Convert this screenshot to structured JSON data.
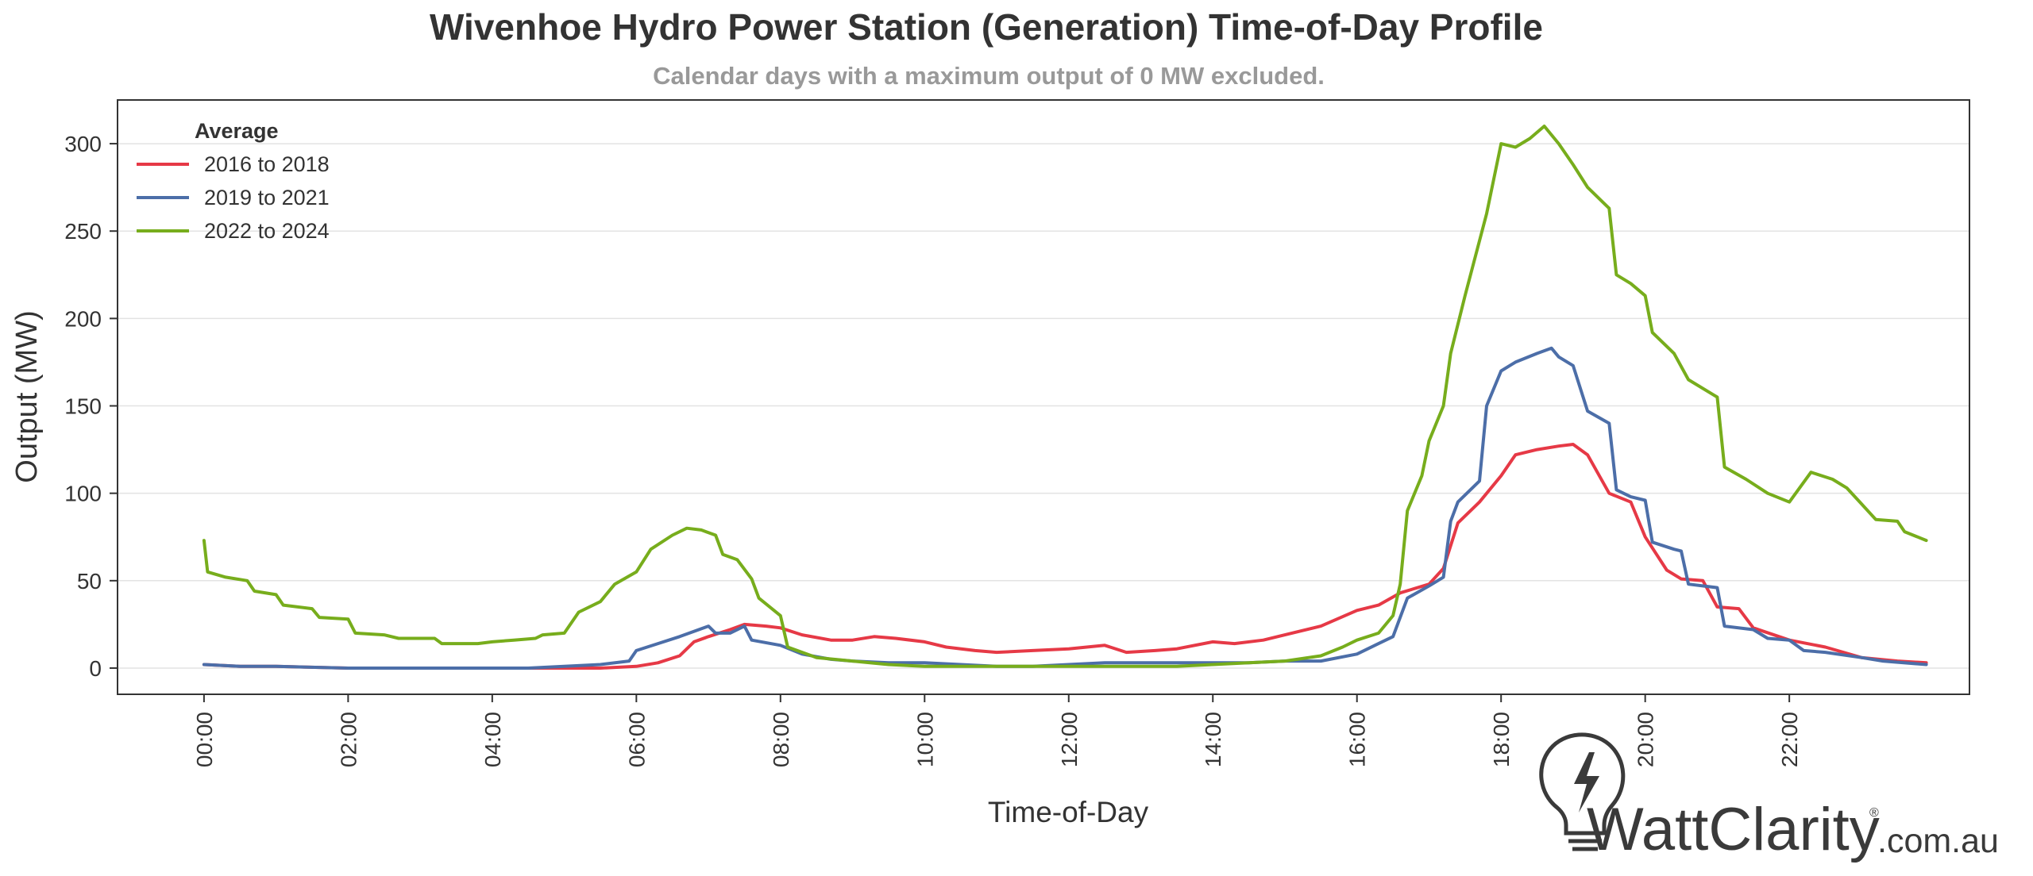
{
  "chart_data": {
    "type": "line",
    "title": "Wivenhoe Hydro Power Station (Generation) Time-of-Day Profile",
    "subtitle": "Calendar days with a maximum output of 0 MW excluded.",
    "xlabel": "Time-of-Day",
    "ylabel": "Output (MW)",
    "xlim": [
      -1.2,
      24.5
    ],
    "ylim": [
      -15,
      325
    ],
    "x_ticks": [
      "00:00",
      "02:00",
      "04:00",
      "06:00",
      "08:00",
      "10:00",
      "12:00",
      "14:00",
      "16:00",
      "18:00",
      "20:00",
      "22:00"
    ],
    "y_ticks": [
      0,
      50,
      100,
      150,
      200,
      250,
      300
    ],
    "grid": "horizontal",
    "legend": {
      "title": "Average",
      "position": "top-left"
    },
    "series": [
      {
        "name": "2016 to 2018",
        "color": "#e63946",
        "points": [
          [
            0,
            2
          ],
          [
            0.5,
            1
          ],
          [
            1,
            1
          ],
          [
            2,
            0
          ],
          [
            3,
            0
          ],
          [
            4,
            0
          ],
          [
            4.5,
            0
          ],
          [
            5,
            0
          ],
          [
            5.5,
            0
          ],
          [
            6,
            1
          ],
          [
            6.3,
            3
          ],
          [
            6.6,
            7
          ],
          [
            6.8,
            15
          ],
          [
            7,
            18
          ],
          [
            7.3,
            22
          ],
          [
            7.5,
            25
          ],
          [
            7.8,
            24
          ],
          [
            8,
            23
          ],
          [
            8.3,
            19
          ],
          [
            8.7,
            16
          ],
          [
            9,
            16
          ],
          [
            9.3,
            18
          ],
          [
            9.6,
            17
          ],
          [
            10,
            15
          ],
          [
            10.3,
            12
          ],
          [
            10.7,
            10
          ],
          [
            11,
            9
          ],
          [
            11.5,
            10
          ],
          [
            12,
            11
          ],
          [
            12.5,
            13
          ],
          [
            12.8,
            9
          ],
          [
            13.2,
            10
          ],
          [
            13.5,
            11
          ],
          [
            14,
            15
          ],
          [
            14.3,
            14
          ],
          [
            14.7,
            16
          ],
          [
            15,
            19
          ],
          [
            15.5,
            24
          ],
          [
            16,
            33
          ],
          [
            16.3,
            36
          ],
          [
            16.6,
            43
          ],
          [
            17,
            48
          ],
          [
            17.2,
            57
          ],
          [
            17.4,
            83
          ],
          [
            17.7,
            95
          ],
          [
            18,
            110
          ],
          [
            18.2,
            122
          ],
          [
            18.5,
            125
          ],
          [
            18.8,
            127
          ],
          [
            19,
            128
          ],
          [
            19.2,
            122
          ],
          [
            19.5,
            100
          ],
          [
            19.8,
            95
          ],
          [
            20,
            75
          ],
          [
            20.3,
            56
          ],
          [
            20.5,
            51
          ],
          [
            20.8,
            50
          ],
          [
            21,
            35
          ],
          [
            21.3,
            34
          ],
          [
            21.5,
            23
          ],
          [
            22,
            16
          ],
          [
            22.5,
            12
          ],
          [
            23,
            6
          ],
          [
            23.5,
            4
          ],
          [
            23.9,
            3
          ]
        ]
      },
      {
        "name": "2019 to 2021",
        "color": "#4c6ea8",
        "points": [
          [
            0,
            2
          ],
          [
            0.5,
            1
          ],
          [
            1,
            1
          ],
          [
            2,
            0
          ],
          [
            3,
            0
          ],
          [
            4,
            0
          ],
          [
            4.5,
            0
          ],
          [
            5,
            1
          ],
          [
            5.5,
            2
          ],
          [
            5.9,
            4
          ],
          [
            6,
            10
          ],
          [
            6.3,
            14
          ],
          [
            6.6,
            18
          ],
          [
            7,
            24
          ],
          [
            7.1,
            20
          ],
          [
            7.3,
            20
          ],
          [
            7.5,
            24
          ],
          [
            7.6,
            16
          ],
          [
            8,
            13
          ],
          [
            8.3,
            8
          ],
          [
            8.7,
            5
          ],
          [
            9,
            4
          ],
          [
            9.5,
            3
          ],
          [
            10,
            3
          ],
          [
            10.5,
            2
          ],
          [
            11,
            1
          ],
          [
            11.5,
            1
          ],
          [
            12,
            2
          ],
          [
            12.5,
            3
          ],
          [
            13,
            3
          ],
          [
            13.5,
            3
          ],
          [
            14,
            3
          ],
          [
            14.5,
            3
          ],
          [
            15,
            4
          ],
          [
            15.5,
            4
          ],
          [
            16,
            8
          ],
          [
            16.3,
            14
          ],
          [
            16.5,
            18
          ],
          [
            16.7,
            40
          ],
          [
            17,
            47
          ],
          [
            17.2,
            52
          ],
          [
            17.3,
            84
          ],
          [
            17.4,
            95
          ],
          [
            17.7,
            107
          ],
          [
            17.8,
            150
          ],
          [
            18,
            170
          ],
          [
            18.2,
            175
          ],
          [
            18.5,
            180
          ],
          [
            18.7,
            183
          ],
          [
            18.8,
            178
          ],
          [
            19,
            173
          ],
          [
            19.2,
            147
          ],
          [
            19.5,
            140
          ],
          [
            19.6,
            102
          ],
          [
            19.8,
            98
          ],
          [
            20,
            96
          ],
          [
            20.1,
            72
          ],
          [
            20.4,
            68
          ],
          [
            20.5,
            67
          ],
          [
            20.6,
            48
          ],
          [
            21,
            46
          ],
          [
            21.1,
            24
          ],
          [
            21.5,
            22
          ],
          [
            21.7,
            17
          ],
          [
            22,
            16
          ],
          [
            22.2,
            10
          ],
          [
            22.5,
            9
          ],
          [
            23,
            6
          ],
          [
            23.3,
            4
          ],
          [
            23.9,
            2
          ]
        ]
      },
      {
        "name": "2022 to 2024",
        "color": "#77ad1c",
        "points": [
          [
            0,
            73
          ],
          [
            0.05,
            55
          ],
          [
            0.3,
            52
          ],
          [
            0.6,
            50
          ],
          [
            0.7,
            44
          ],
          [
            1,
            42
          ],
          [
            1.1,
            36
          ],
          [
            1.5,
            34
          ],
          [
            1.6,
            29
          ],
          [
            2,
            28
          ],
          [
            2.1,
            20
          ],
          [
            2.5,
            19
          ],
          [
            2.7,
            17
          ],
          [
            3.2,
            17
          ],
          [
            3.3,
            14
          ],
          [
            3.8,
            14
          ],
          [
            4,
            15
          ],
          [
            4.3,
            16
          ],
          [
            4.6,
            17
          ],
          [
            4.7,
            19
          ],
          [
            5,
            20
          ],
          [
            5.2,
            32
          ],
          [
            5.5,
            38
          ],
          [
            5.7,
            48
          ],
          [
            6,
            55
          ],
          [
            6.2,
            68
          ],
          [
            6.5,
            76
          ],
          [
            6.7,
            80
          ],
          [
            6.9,
            79
          ],
          [
            7.1,
            76
          ],
          [
            7.2,
            65
          ],
          [
            7.4,
            62
          ],
          [
            7.6,
            51
          ],
          [
            7.7,
            40
          ],
          [
            8,
            30
          ],
          [
            8.1,
            12
          ],
          [
            8.5,
            6
          ],
          [
            9,
            4
          ],
          [
            9.5,
            2
          ],
          [
            10,
            1
          ],
          [
            11,
            1
          ],
          [
            12,
            1
          ],
          [
            13,
            1
          ],
          [
            13.5,
            1
          ],
          [
            14,
            2
          ],
          [
            14.5,
            3
          ],
          [
            15,
            4
          ],
          [
            15.5,
            7
          ],
          [
            15.8,
            12
          ],
          [
            16,
            16
          ],
          [
            16.3,
            20
          ],
          [
            16.5,
            30
          ],
          [
            16.6,
            48
          ],
          [
            16.7,
            90
          ],
          [
            16.9,
            110
          ],
          [
            17,
            130
          ],
          [
            17.2,
            150
          ],
          [
            17.3,
            180
          ],
          [
            17.5,
            213
          ],
          [
            17.8,
            260
          ],
          [
            18,
            300
          ],
          [
            18.2,
            298
          ],
          [
            18.4,
            303
          ],
          [
            18.6,
            310
          ],
          [
            18.8,
            300
          ],
          [
            19,
            288
          ],
          [
            19.2,
            275
          ],
          [
            19.5,
            263
          ],
          [
            19.6,
            225
          ],
          [
            19.8,
            220
          ],
          [
            20,
            213
          ],
          [
            20.1,
            192
          ],
          [
            20.4,
            180
          ],
          [
            20.6,
            165
          ],
          [
            21,
            155
          ],
          [
            21.1,
            115
          ],
          [
            21.4,
            108
          ],
          [
            21.7,
            100
          ],
          [
            22,
            95
          ],
          [
            22.3,
            112
          ],
          [
            22.6,
            108
          ],
          [
            22.8,
            103
          ],
          [
            23,
            94
          ],
          [
            23.2,
            85
          ],
          [
            23.5,
            84
          ],
          [
            23.6,
            78
          ],
          [
            23.9,
            73
          ]
        ]
      }
    ]
  },
  "brand": {
    "name": "WattClarity",
    "registered": "®",
    "domain": ".com.au",
    "icon": "lightbulb-bolt-icon"
  }
}
